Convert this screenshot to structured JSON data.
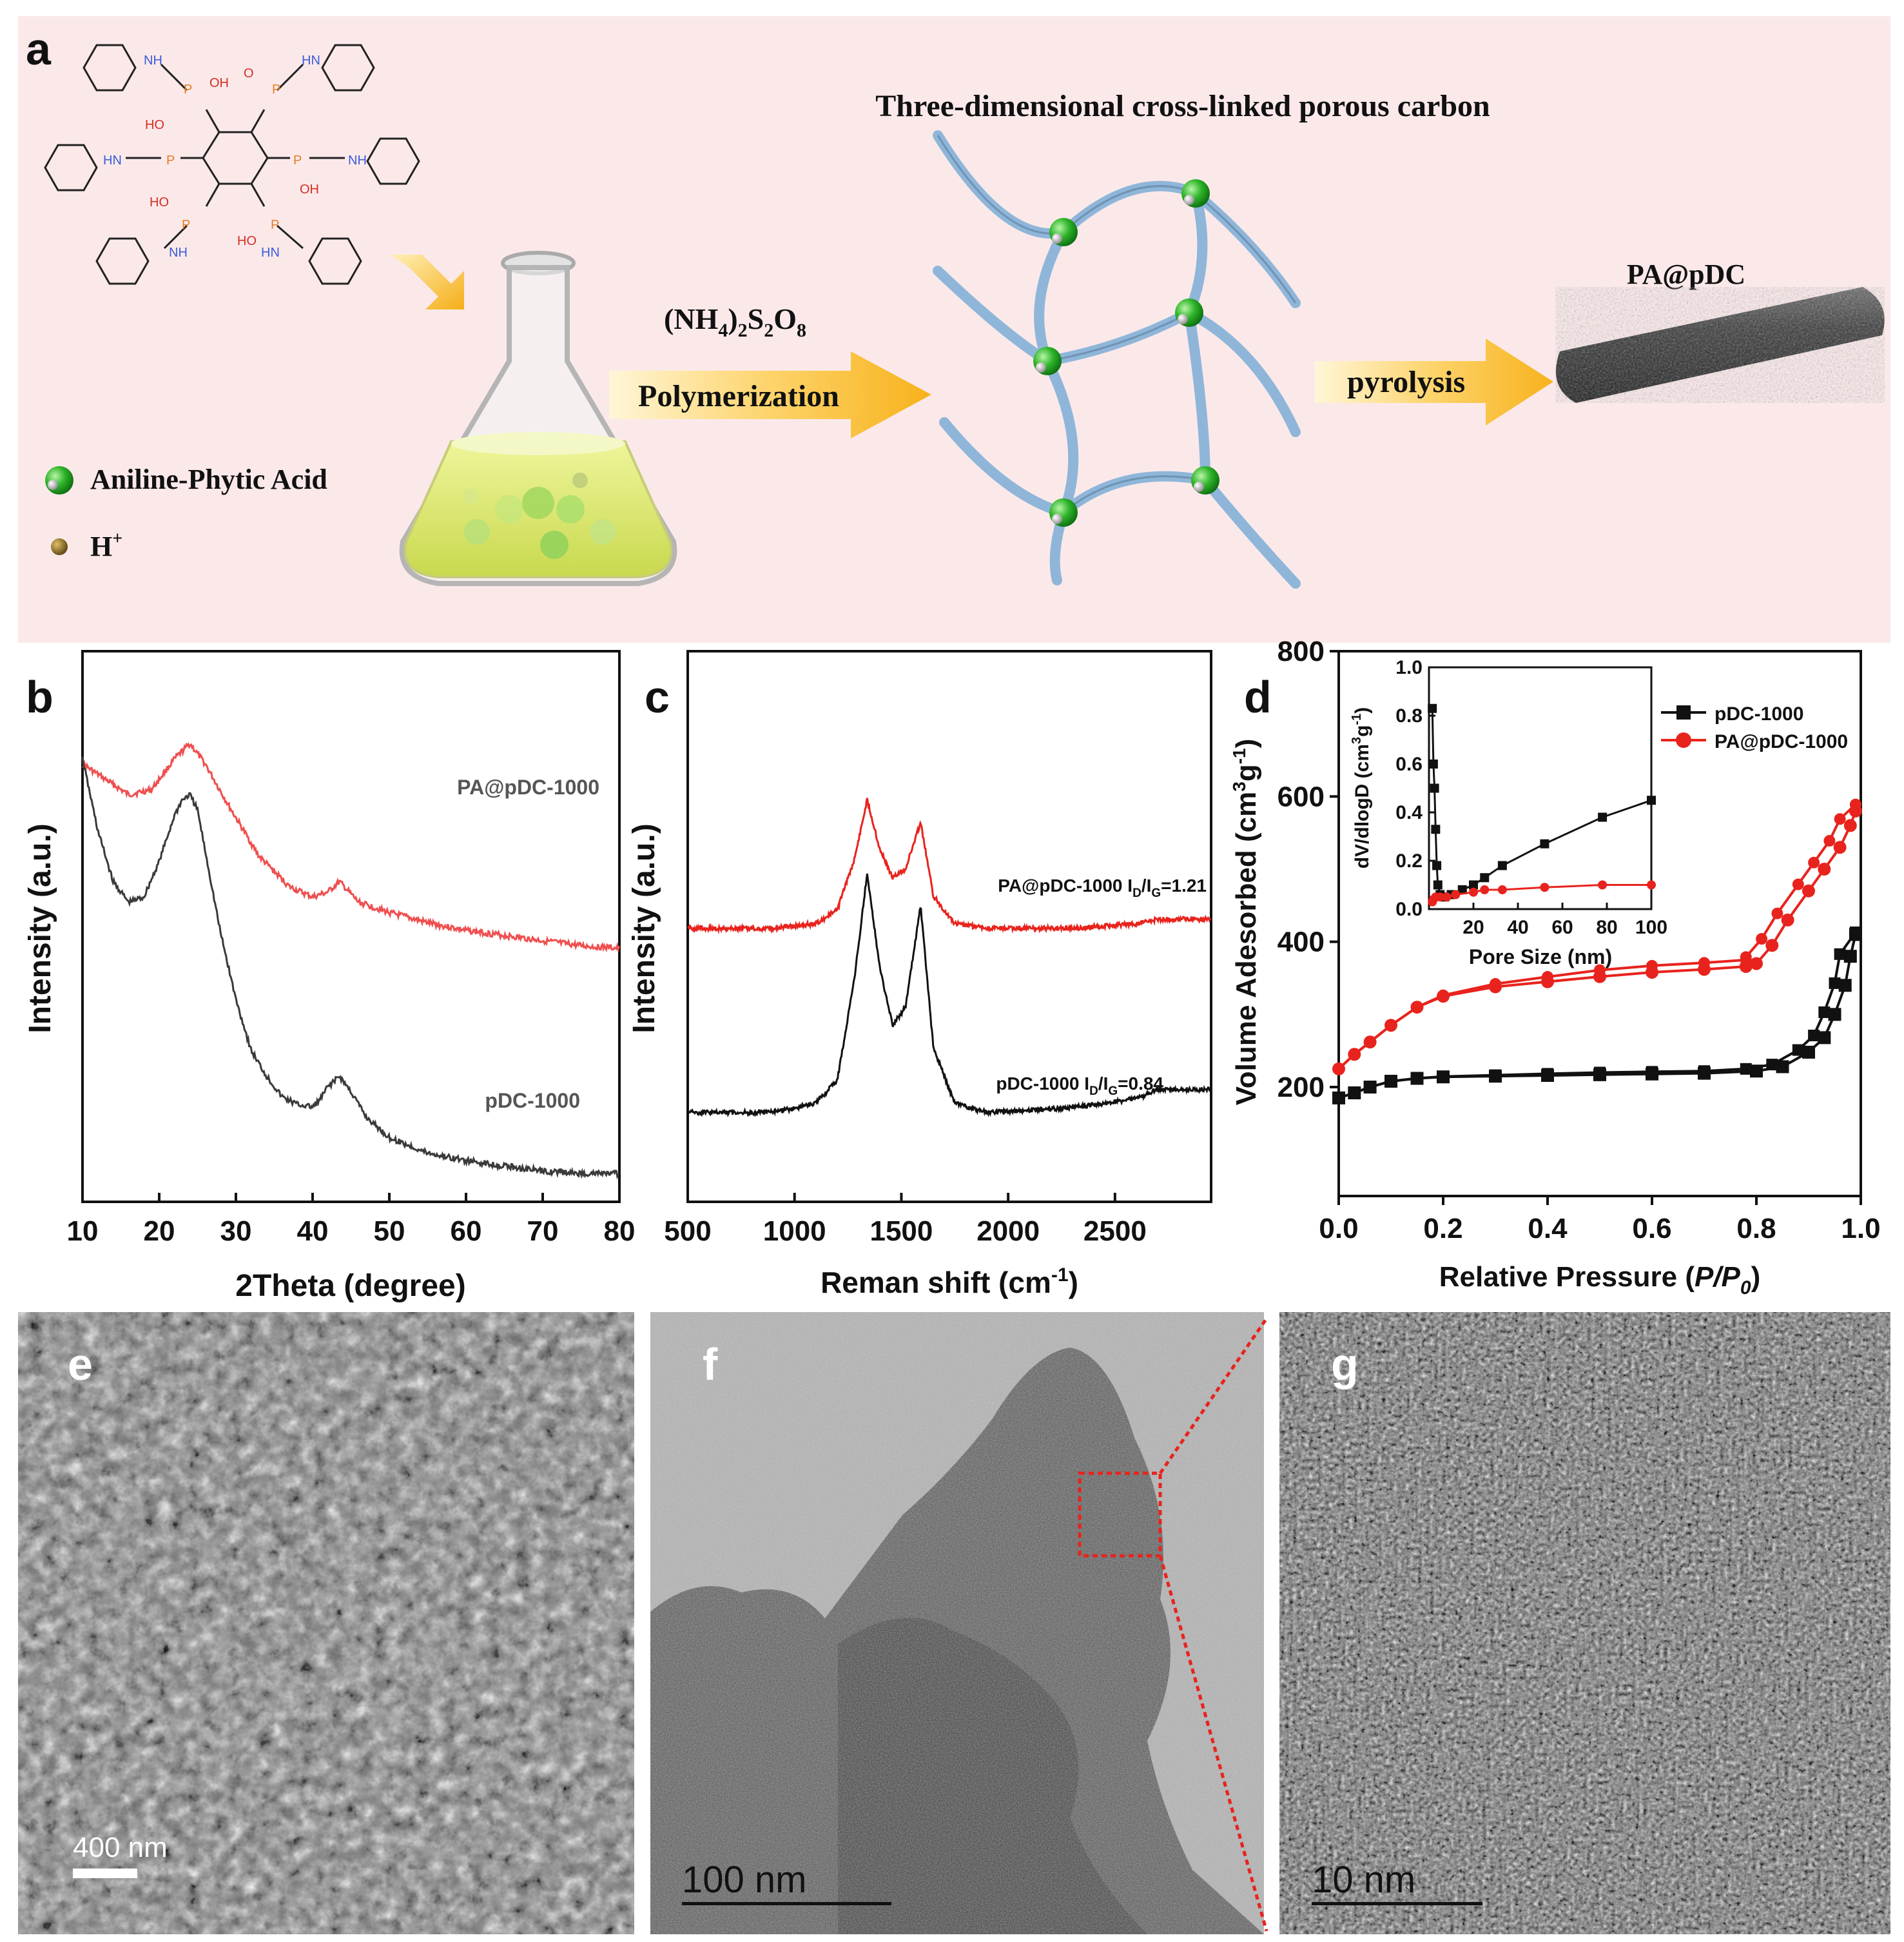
{
  "panel_letters": {
    "a": "a",
    "b": "b",
    "c": "c",
    "d": "d",
    "e": "e",
    "f": "f",
    "g": "g"
  },
  "scheme": {
    "title": "Three-dimensional cross-linked porous carbon",
    "reagent_base": "(NH",
    "reagent_sub1": "4",
    "reagent_mid1": ")",
    "reagent_sub2": "2",
    "reagent_mid2": "S",
    "reagent_sub3": "2",
    "reagent_mid3": "O",
    "reagent_sub4": "8",
    "step1": "Polymerization",
    "step2": "pyrolysis",
    "product": "PA@pDC",
    "legend_monomer": "Aniline-Phytic Acid",
    "legend_proton": "H",
    "legend_proton_sup": "+",
    "molecule_labels": {
      "nh": "NH",
      "hn": "HN",
      "oh": "OH",
      "ho": "HO",
      "o": "O",
      "p": "P"
    }
  },
  "chart_data": [
    {
      "panel": "b",
      "type": "line",
      "xlabel": "2Theta (degree)",
      "ylabel": "Intensity (a.u.)",
      "xlim": [
        10,
        80
      ],
      "xticks": [
        "10",
        "20",
        "30",
        "40",
        "50",
        "60",
        "70",
        "80"
      ],
      "series": [
        {
          "name": "PA@pDC-1000",
          "color": "#ef4f4f",
          "x": [
            10,
            13,
            16,
            19,
            22,
            24,
            26,
            29,
            33,
            37,
            40,
            42,
            43.5,
            46,
            50,
            55,
            60,
            65,
            70,
            75,
            80
          ],
          "y": [
            0.83,
            0.8,
            0.77,
            0.78,
            0.84,
            0.87,
            0.83,
            0.75,
            0.65,
            0.59,
            0.57,
            0.58,
            0.6,
            0.56,
            0.54,
            0.52,
            0.505,
            0.495,
            0.485,
            0.475,
            0.47
          ]
        },
        {
          "name": "pDC-1000",
          "color": "#3a3a3a",
          "x": [
            10,
            12,
            14,
            16,
            18,
            20,
            22,
            23,
            24,
            25,
            26,
            28,
            30,
            32,
            34,
            36,
            38,
            40,
            41,
            42,
            43.5,
            45,
            47,
            50,
            55,
            60,
            65,
            70,
            75,
            80
          ],
          "y": [
            0.84,
            0.7,
            0.6,
            0.56,
            0.57,
            0.64,
            0.73,
            0.76,
            0.77,
            0.74,
            0.66,
            0.5,
            0.37,
            0.27,
            0.22,
            0.18,
            0.165,
            0.16,
            0.175,
            0.2,
            0.22,
            0.19,
            0.14,
            0.1,
            0.07,
            0.055,
            0.045,
            0.035,
            0.03,
            0.03
          ]
        }
      ]
    },
    {
      "panel": "c",
      "type": "line",
      "xlabel": "Reman shift (cm",
      "xlabel_sup": "-1",
      "xlabel_end": ")",
      "ylabel": "Intensity (a.u.)",
      "xlim": [
        500,
        2950
      ],
      "xticks": [
        "500",
        "1000",
        "1500",
        "2000",
        "2500"
      ],
      "series": [
        {
          "name": "PA@pDC-1000",
          "label_main": "PA@pDC-1000 I",
          "label_sub1": "D",
          "label_mid": "/I",
          "label_sub2": "G",
          "label_end": "=1.21",
          "color": "#e8231d",
          "x": [
            500,
            900,
            1100,
            1200,
            1280,
            1340,
            1400,
            1460,
            1520,
            1590,
            1650,
            1750,
            1900,
            2300,
            2600,
            2700,
            2950
          ],
          "y": [
            0.51,
            0.51,
            0.52,
            0.55,
            0.66,
            0.79,
            0.68,
            0.62,
            0.64,
            0.74,
            0.58,
            0.52,
            0.51,
            0.51,
            0.52,
            0.53,
            0.53
          ]
        },
        {
          "name": "pDC-1000",
          "label_main": "pDC-1000 I",
          "label_sub1": "D",
          "label_mid": "/I",
          "label_sub2": "G",
          "label_end": "=0.84",
          "color": "#111111",
          "x": [
            500,
            900,
            1100,
            1200,
            1280,
            1340,
            1400,
            1460,
            1520,
            1590,
            1650,
            1750,
            1900,
            2300,
            2600,
            2700,
            2950
          ],
          "y": [
            0.11,
            0.11,
            0.13,
            0.18,
            0.4,
            0.63,
            0.42,
            0.3,
            0.34,
            0.56,
            0.25,
            0.13,
            0.11,
            0.12,
            0.14,
            0.16,
            0.16
          ]
        }
      ]
    },
    {
      "panel": "d",
      "type": "line",
      "xlabel": "Relative Pressure (",
      "xlabel_ital": "P/P",
      "xlabel_sub": "0",
      "xlabel_end": ")",
      "ylabel": "Volume Adesorbed (cm",
      "ylabel_sup1": "3",
      "ylabel_mid": "g",
      "ylabel_sup2": "-1",
      "ylabel_end": ")",
      "xlim": [
        0,
        1.0
      ],
      "ylim": [
        50,
        800
      ],
      "xticks": [
        "0.0",
        "0.2",
        "0.4",
        "0.6",
        "0.8",
        "1.0"
      ],
      "yticks": [
        "200",
        "400",
        "600",
        "800"
      ],
      "series": [
        {
          "name": "pDC-1000",
          "color": "#111111",
          "marker": "square",
          "x": [
            0.0,
            0.03,
            0.06,
            0.1,
            0.15,
            0.2,
            0.3,
            0.4,
            0.5,
            0.6,
            0.7,
            0.8,
            0.85,
            0.9,
            0.93,
            0.95,
            0.97,
            0.98,
            0.99
          ],
          "y": [
            185,
            192,
            200,
            208,
            212,
            214,
            215,
            216,
            217,
            218,
            219,
            222,
            228,
            248,
            268,
            300,
            340,
            380,
            410
          ]
        },
        {
          "name": "PA@pDC-1000",
          "color": "#e8231d",
          "marker": "circle",
          "x": [
            0.0,
            0.03,
            0.06,
            0.1,
            0.15,
            0.2,
            0.3,
            0.4,
            0.5,
            0.6,
            0.7,
            0.78,
            0.8,
            0.83,
            0.86,
            0.9,
            0.93,
            0.96,
            0.98,
            0.99
          ],
          "y": [
            225,
            245,
            262,
            285,
            310,
            325,
            338,
            345,
            352,
            358,
            362,
            366,
            370,
            395,
            430,
            470,
            500,
            530,
            560,
            580
          ]
        }
      ],
      "legend": [
        "pDC-1000",
        "PA@pDC-1000"
      ],
      "inset": {
        "xlabel": "Pore Size (nm)",
        "ylabel": "dV/dlogD (cm",
        "ylabel_sup1": "3",
        "ylabel_mid": "g",
        "ylabel_sup2": "-1",
        "ylabel_end": ")",
        "xlim": [
          0,
          100
        ],
        "ylim": [
          0,
          1.0
        ],
        "xticks": [
          "20",
          "40",
          "60",
          "80",
          "100"
        ],
        "yticks": [
          "0.0",
          "0.2",
          "0.4",
          "0.6",
          "0.8",
          "1.0"
        ],
        "series": [
          {
            "name": "pDC-1000",
            "color": "#111111",
            "x": [
              1.5,
              2,
              2.5,
              3,
              3.5,
              4,
              5,
              7,
              10,
              15,
              20,
              25,
              33,
              52,
              78,
              100
            ],
            "y": [
              0.83,
              0.6,
              0.5,
              0.33,
              0.18,
              0.1,
              0.06,
              0.05,
              0.06,
              0.08,
              0.1,
              0.13,
              0.18,
              0.27,
              0.38,
              0.45
            ]
          },
          {
            "name": "PA@pDC-1000",
            "color": "#e8231d",
            "x": [
              1.5,
              2,
              3,
              5,
              8,
              12,
              20,
              25,
              33,
              52,
              78,
              100
            ],
            "y": [
              0.03,
              0.04,
              0.05,
              0.05,
              0.05,
              0.06,
              0.07,
              0.08,
              0.08,
              0.09,
              0.1,
              0.1
            ]
          }
        ]
      }
    }
  ],
  "micrographs": {
    "e": {
      "scale_label": "400 nm"
    },
    "f": {
      "scale_label": "100  nm"
    },
    "g": {
      "scale_label": "10  nm"
    }
  }
}
